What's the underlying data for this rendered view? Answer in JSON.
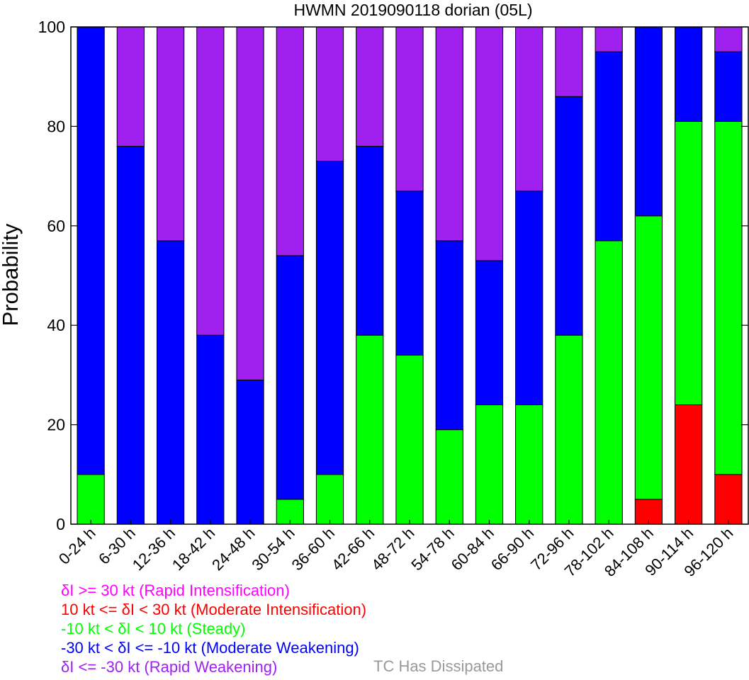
{
  "chart_data": {
    "type": "bar",
    "stacked": true,
    "title": "HWMN 2019090118 dorian (05L)",
    "xlabel": "",
    "ylabel": "Probability",
    "ylim": [
      0,
      100
    ],
    "yticks": [
      0,
      20,
      40,
      60,
      80,
      100
    ],
    "grid": false,
    "categories": [
      "0-24 h",
      "6-30 h",
      "12-36 h",
      "18-42 h",
      "24-48 h",
      "30-54 h",
      "36-60 h",
      "42-66 h",
      "48-72 h",
      "54-78 h",
      "60-84 h",
      "66-90 h",
      "72-96 h",
      "78-102 h",
      "84-108 h",
      "90-114 h",
      "96-120 h"
    ],
    "series": [
      {
        "name": "Rapid Intensification",
        "color": "#ff00ff",
        "values": [
          0,
          0,
          0,
          0,
          0,
          0,
          0,
          0,
          0,
          0,
          0,
          0,
          0,
          0,
          0,
          0,
          0
        ]
      },
      {
        "name": "Moderate Intensification",
        "color": "#ff0000",
        "values": [
          0,
          0,
          0,
          0,
          0,
          0,
          0,
          0,
          0,
          0,
          0,
          0,
          0,
          0,
          5,
          24,
          10
        ]
      },
      {
        "name": "Steady",
        "color": "#00ff00",
        "values": [
          10,
          0,
          0,
          0,
          0,
          5,
          10,
          38,
          34,
          19,
          24,
          24,
          38,
          57,
          57,
          57,
          71
        ]
      },
      {
        "name": "Moderate Weakening",
        "color": "#0000ff",
        "values": [
          90,
          76,
          57,
          38,
          29,
          49,
          63,
          38,
          33,
          38,
          29,
          43,
          48,
          38,
          38,
          19,
          14
        ]
      },
      {
        "name": "Rapid Weakening",
        "color": "#a020f0",
        "values": [
          0,
          24,
          43,
          62,
          71,
          46,
          27,
          24,
          33,
          43,
          47,
          33,
          14,
          5,
          0,
          0,
          5
        ]
      }
    ],
    "legend_placement": "bottom-left",
    "legend": [
      {
        "text": "δI >= 30 kt (Rapid Intensification)",
        "color": "#ff00ff"
      },
      {
        "text": "10 kt <= δI < 30 kt (Moderate Intensification)",
        "color": "#ff0000"
      },
      {
        "text": "-10 kt < δI < 10 kt (Steady)",
        "color": "#00ff00"
      },
      {
        "text": "-30 kt < δI <= -10 kt (Moderate Weakening)",
        "color": "#0000ff"
      },
      {
        "text": "δI <= -30 kt (Rapid Weakening)",
        "color": "#a020f0"
      }
    ],
    "dissipated_label": {
      "text": "TC Has Dissipated",
      "color": "#999999"
    }
  }
}
